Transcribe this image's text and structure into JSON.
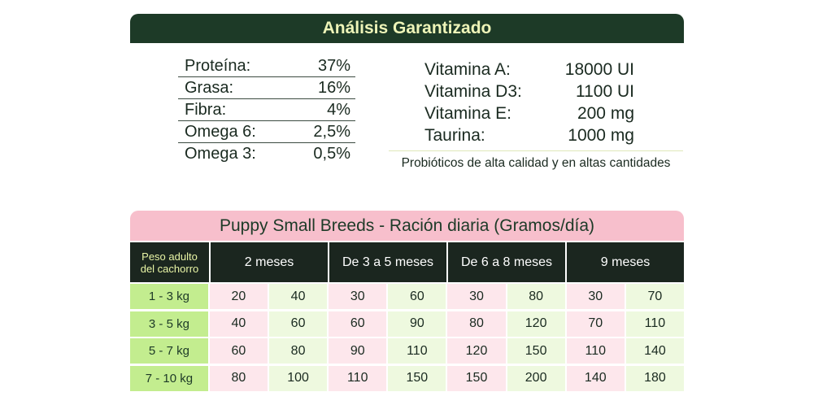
{
  "analysis": {
    "title": "Análisis Garantizado",
    "nutrients": [
      {
        "label": "Proteína:",
        "value": "37%"
      },
      {
        "label": "Grasa:",
        "value": "16%"
      },
      {
        "label": "Fibra:",
        "value": "4%"
      },
      {
        "label": "Omega 6:",
        "value": "2,5%"
      },
      {
        "label": "Omega 3:",
        "value": "0,5%"
      }
    ],
    "vitamins": [
      {
        "label": "Vitamina A:",
        "value": "18000 UI"
      },
      {
        "label": "Vitamina D3:",
        "value": "1100 UI"
      },
      {
        "label": "Vitamina E:",
        "value": "200 mg"
      },
      {
        "label": "Taurina:",
        "value": "1000 mg"
      }
    ],
    "probiotics": "Probióticos de alta calidad y en altas cantidades"
  },
  "ration": {
    "title": "Puppy Small Breeds - Ración diaria (Gramos/día)",
    "weight_header_line1": "Peso adulto",
    "weight_header_line2": "del cachorro",
    "age_columns": [
      "2 meses",
      "De 3 a 5 meses",
      "De 6 a 8 meses",
      "9 meses"
    ],
    "rows": [
      {
        "weight": "1 - 3 kg",
        "values": [
          "20",
          "40",
          "30",
          "60",
          "30",
          "80",
          "30",
          "70"
        ]
      },
      {
        "weight": "3 - 5 kg",
        "values": [
          "40",
          "60",
          "60",
          "90",
          "80",
          "120",
          "70",
          "110"
        ]
      },
      {
        "weight": "5 - 7 kg",
        "values": [
          "60",
          "80",
          "90",
          "110",
          "120",
          "150",
          "110",
          "140"
        ]
      },
      {
        "weight": "7 - 10 kg",
        "values": [
          "80",
          "100",
          "110",
          "150",
          "150",
          "200",
          "140",
          "180"
        ]
      }
    ]
  },
  "colors": {
    "dark_green": "#1d3a27",
    "header_text_yellow": "#eef4b8",
    "pink_header": "#f7bfcc",
    "weight_green": "#c3ed8f",
    "cell_pink": "#fde7ec",
    "cell_green": "#eef9df"
  }
}
